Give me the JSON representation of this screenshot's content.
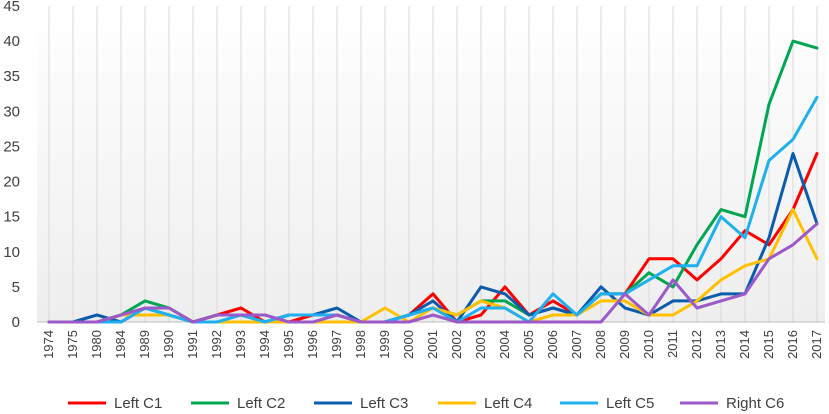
{
  "chart_data": {
    "type": "line",
    "title": "",
    "xlabel": "",
    "ylabel": "",
    "ylim": [
      0,
      45
    ],
    "yticks": [
      0,
      5,
      10,
      15,
      20,
      25,
      30,
      35,
      40,
      45
    ],
    "grid": "vertical lines at x categories (light gray), light gradient plot background",
    "legend_position": "bottom",
    "categories": [
      "1974",
      "1975",
      "1980",
      "1984",
      "1989",
      "1990",
      "1991",
      "1992",
      "1993",
      "1994",
      "1995",
      "1996",
      "1997",
      "1998",
      "1999",
      "2000",
      "2001",
      "2002",
      "2003",
      "2004",
      "2005",
      "2006",
      "2007",
      "2008",
      "2009",
      "2010",
      "2011",
      "2012",
      "2013",
      "2014",
      "2015",
      "2016",
      "2017"
    ],
    "series": [
      {
        "name": "Left C1",
        "color": "#ff0000",
        "values": [
          0,
          0,
          0,
          0,
          2,
          2,
          0,
          1,
          2,
          0,
          0,
          1,
          1,
          0,
          0,
          1,
          4,
          0,
          1,
          5,
          1,
          3,
          1,
          4,
          4,
          9,
          9,
          6,
          9,
          13,
          11,
          16,
          24
        ]
      },
      {
        "name": "Left C2",
        "color": "#00a651",
        "values": [
          0,
          0,
          0,
          1,
          3,
          2,
          0,
          1,
          1,
          0,
          1,
          1,
          1,
          0,
          0,
          1,
          2,
          1,
          3,
          3,
          1,
          2,
          1,
          4,
          4,
          7,
          5,
          11,
          16,
          15,
          31,
          40,
          39
        ]
      },
      {
        "name": "Left C3",
        "color": "#0b5cad",
        "values": [
          0,
          0,
          1,
          0,
          2,
          1,
          0,
          0,
          0,
          0,
          1,
          1,
          2,
          0,
          0,
          1,
          3,
          0,
          5,
          4,
          1,
          2,
          1,
          5,
          2,
          1,
          3,
          3,
          4,
          4,
          12,
          24,
          14
        ]
      },
      {
        "name": "Left C4",
        "color": "#ffc000",
        "values": [
          0,
          0,
          0,
          1,
          1,
          1,
          0,
          0,
          0,
          0,
          0,
          0,
          0,
          0,
          2,
          0,
          2,
          1,
          3,
          2,
          0,
          1,
          1,
          3,
          3,
          1,
          1,
          3,
          6,
          8,
          9,
          16,
          9
        ]
      },
      {
        "name": "Left C5",
        "color": "#1fb1ef",
        "values": [
          0,
          0,
          0,
          0,
          2,
          1,
          0,
          0,
          1,
          0,
          1,
          1,
          1,
          0,
          0,
          1,
          2,
          0,
          2,
          2,
          0,
          4,
          1,
          4,
          4,
          6,
          8,
          8,
          15,
          12,
          23,
          26,
          32
        ]
      },
      {
        "name": "Right C6",
        "color": "#9b59c9",
        "values": [
          0,
          0,
          0,
          1,
          2,
          2,
          0,
          1,
          1,
          1,
          0,
          0,
          1,
          0,
          0,
          0,
          1,
          0,
          0,
          0,
          0,
          0,
          0,
          0,
          4,
          1,
          6,
          2,
          3,
          4,
          9,
          11,
          14
        ]
      }
    ]
  }
}
